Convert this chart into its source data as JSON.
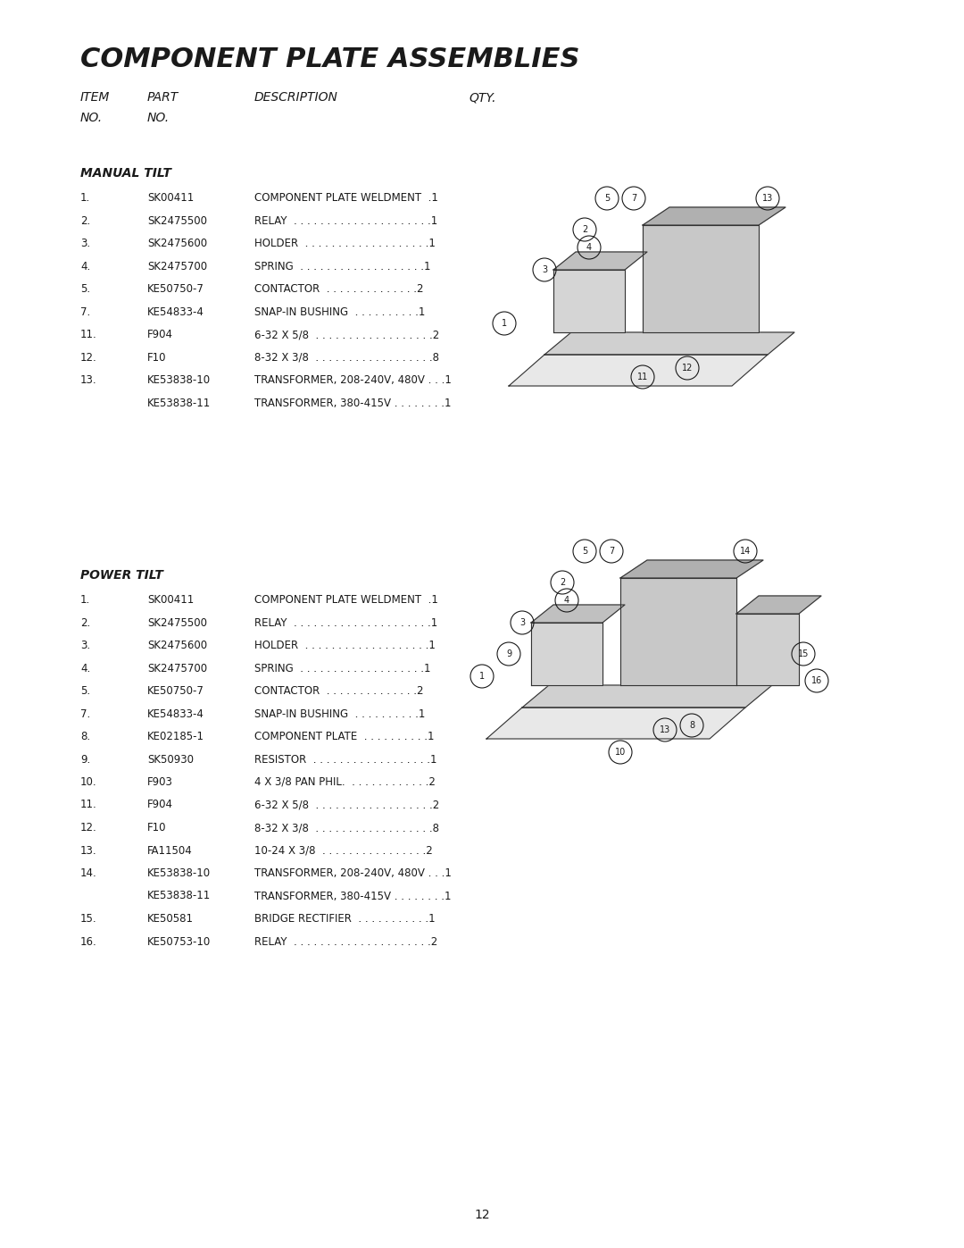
{
  "title": "COMPONENT PLATE ASSEMBLIES",
  "header_cols": [
    "ITEM\nNO.",
    "PART\nNO.",
    "DESCRIPTION",
    "QTY."
  ],
  "manual_tilt_label": "MANUAL TILT",
  "manual_tilt_items": [
    [
      "1.",
      "SK00411",
      "COMPONENT PLATE WELDMENT  .1"
    ],
    [
      "2.",
      "SK2475500",
      "RELAY  . . . . . . . . . . . . . . . . . . . . .1"
    ],
    [
      "3.",
      "SK2475600",
      "HOLDER  . . . . . . . . . . . . . . . . . . .1"
    ],
    [
      "4.",
      "SK2475700",
      "SPRING  . . . . . . . . . . . . . . . . . . .1"
    ],
    [
      "5.",
      "KE50750-7",
      "CONTACTOR  . . . . . . . . . . . . . .2"
    ],
    [
      "7.",
      "KE54833-4",
      "SNAP-IN BUSHING  . . . . . . . . . .1"
    ],
    [
      "11.",
      "F904",
      "6-32 X 5/8  . . . . . . . . . . . . . . . . . .2"
    ],
    [
      "12.",
      "F10",
      "8-32 X 3/8  . . . . . . . . . . . . . . . . . .8"
    ],
    [
      "13.",
      "KE53838-10",
      "TRANSFORMER, 208-240V, 480V . . .1"
    ],
    [
      "",
      "KE53838-11",
      "TRANSFORMER, 380-415V . . . . . . . .1"
    ]
  ],
  "power_tilt_label": "POWER TILT",
  "power_tilt_items": [
    [
      "1.",
      "SK00411",
      "COMPONENT PLATE WELDMENT  .1"
    ],
    [
      "2.",
      "SK2475500",
      "RELAY  . . . . . . . . . . . . . . . . . . . . .1"
    ],
    [
      "3.",
      "SK2475600",
      "HOLDER  . . . . . . . . . . . . . . . . . . .1"
    ],
    [
      "4.",
      "SK2475700",
      "SPRING  . . . . . . . . . . . . . . . . . . .1"
    ],
    [
      "5.",
      "KE50750-7",
      "CONTACTOR  . . . . . . . . . . . . . .2"
    ],
    [
      "7.",
      "KE54833-4",
      "SNAP-IN BUSHING  . . . . . . . . . .1"
    ],
    [
      "8.",
      "KE02185-1",
      "COMPONENT PLATE  . . . . . . . . . .1"
    ],
    [
      "9.",
      "SK50930",
      "RESISTOR  . . . . . . . . . . . . . . . . . .1"
    ],
    [
      "10.",
      "F903",
      "4 X 3/8 PAN PHIL.  . . . . . . . . . . . .2"
    ],
    [
      "11.",
      "F904",
      "6-32 X 5/8  . . . . . . . . . . . . . . . . . .2"
    ],
    [
      "12.",
      "F10",
      "8-32 X 3/8  . . . . . . . . . . . . . . . . . .8"
    ],
    [
      "13.",
      "FA11504",
      "10-24 X 3/8  . . . . . . . . . . . . . . . .2"
    ],
    [
      "14.",
      "KE53838-10",
      "TRANSFORMER, 208-240V, 480V . . .1"
    ],
    [
      "",
      "KE53838-11",
      "TRANSFORMER, 380-415V . . . . . . . .1"
    ],
    [
      "15.",
      "KE50581",
      "BRIDGE RECTIFIER  . . . . . . . . . . .1"
    ],
    [
      "16.",
      "KE50753-10",
      "RELAY  . . . . . . . . . . . . . . . . . . . . .2"
    ]
  ],
  "page_number": "12",
  "bg_color": "#ffffff",
  "text_color": "#1a1a1a"
}
